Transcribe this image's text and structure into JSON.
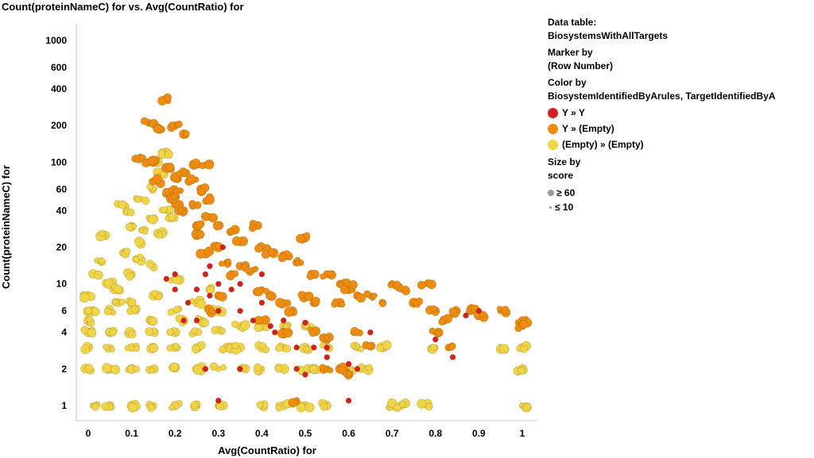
{
  "chart_data": {
    "type": "scatter",
    "title": "Count(proteinNameC) for vs. Avg(CountRatio) for",
    "xlabel": "Avg(CountRatio) for",
    "ylabel": "Count(proteinNameC) for",
    "x_scale": "linear",
    "y_scale": "log",
    "xlim": [
      -0.04,
      1.02
    ],
    "ylim": [
      0.75,
      1400
    ],
    "x_ticks": [
      0,
      0.1,
      0.2,
      0.3,
      0.4,
      0.5,
      0.6,
      0.7,
      0.8,
      0.9,
      1
    ],
    "x_tick_labels": [
      "0",
      "0.1",
      "0.2",
      "0.3",
      "0.4",
      "0.5",
      "0.6",
      "0.7",
      "0.8",
      "0.9",
      "1"
    ],
    "y_ticks": [
      1,
      2,
      4,
      6,
      10,
      20,
      40,
      60,
      100,
      200,
      400,
      600,
      1000
    ],
    "y_tick_labels": [
      "1",
      "2",
      "4",
      "6",
      "10",
      "20",
      "40",
      "60",
      "100",
      "200",
      "400",
      "600",
      "1000"
    ],
    "grid": false,
    "series": [
      {
        "name": "Y » Y",
        "color": "#d42020",
        "points": [
          [
            0.18,
            11
          ],
          [
            0.2,
            9
          ],
          [
            0.22,
            5
          ],
          [
            0.25,
            9
          ],
          [
            0.27,
            12
          ],
          [
            0.28,
            8
          ],
          [
            0.3,
            10
          ],
          [
            0.31,
            20
          ],
          [
            0.35,
            6
          ],
          [
            0.38,
            5
          ],
          [
            0.4,
            7
          ],
          [
            0.42,
            4.5
          ],
          [
            0.45,
            5
          ],
          [
            0.48,
            3
          ],
          [
            0.5,
            4.8
          ],
          [
            0.52,
            3
          ],
          [
            0.55,
            2.5
          ],
          [
            0.6,
            1.1
          ],
          [
            0.62,
            2
          ],
          [
            0.65,
            4
          ],
          [
            0.8,
            3.5
          ],
          [
            0.84,
            2.5
          ],
          [
            0.87,
            5.5
          ],
          [
            0.9,
            6
          ],
          [
            0.6,
            2.2
          ],
          [
            0.48,
            2
          ],
          [
            0.5,
            1.8
          ],
          [
            0.25,
            5
          ],
          [
            0.3,
            6
          ],
          [
            0.33,
            9
          ],
          [
            0.35,
            10
          ],
          [
            0.4,
            12
          ],
          [
            0.43,
            4
          ],
          [
            0.3,
            1.1
          ],
          [
            0.27,
            2
          ],
          [
            0.35,
            2
          ],
          [
            0.55,
            3
          ],
          [
            0.23,
            7
          ],
          [
            0.2,
            12
          ],
          [
            0.28,
            14
          ]
        ]
      },
      {
        "name": "Y » (Empty)",
        "color": "#ed8c10",
        "points": [
          [
            0.18,
            330
          ],
          [
            0.14,
            210
          ],
          [
            0.16,
            190
          ],
          [
            0.2,
            200
          ],
          [
            0.22,
            170
          ],
          [
            0.25,
            95
          ],
          [
            0.27,
            95
          ],
          [
            0.12,
            110
          ],
          [
            0.15,
            100
          ],
          [
            0.18,
            90
          ],
          [
            0.2,
            75
          ],
          [
            0.22,
            80
          ],
          [
            0.24,
            70
          ],
          [
            0.26,
            60
          ],
          [
            0.28,
            50
          ],
          [
            0.24,
            45
          ],
          [
            0.28,
            35
          ],
          [
            0.3,
            30
          ],
          [
            0.33,
            27
          ],
          [
            0.38,
            30
          ],
          [
            0.35,
            22
          ],
          [
            0.4,
            20
          ],
          [
            0.42,
            18
          ],
          [
            0.45,
            17
          ],
          [
            0.5,
            24
          ],
          [
            0.48,
            15
          ],
          [
            0.52,
            12
          ],
          [
            0.55,
            12
          ],
          [
            0.58,
            10
          ],
          [
            0.6,
            9
          ],
          [
            0.62,
            8
          ],
          [
            0.65,
            8
          ],
          [
            0.68,
            7
          ],
          [
            0.72,
            9
          ],
          [
            0.75,
            7
          ],
          [
            0.78,
            10
          ],
          [
            0.8,
            6
          ],
          [
            0.82,
            5
          ],
          [
            0.85,
            6
          ],
          [
            0.88,
            6
          ],
          [
            0.9,
            5.5
          ],
          [
            0.95,
            6
          ],
          [
            1.0,
            5
          ],
          [
            0.52,
            4
          ],
          [
            0.55,
            3.5
          ],
          [
            0.62,
            4
          ],
          [
            0.65,
            3
          ],
          [
            0.8,
            4
          ],
          [
            0.83,
            3
          ],
          [
            0.55,
            2
          ],
          [
            0.58,
            2
          ],
          [
            0.6,
            1.8
          ],
          [
            0.48,
            1.1
          ],
          [
            0.3,
            20
          ],
          [
            0.32,
            15
          ],
          [
            0.25,
            25
          ],
          [
            0.27,
            18
          ],
          [
            0.35,
            14
          ],
          [
            0.38,
            13
          ],
          [
            0.33,
            12
          ],
          [
            0.42,
            8
          ],
          [
            0.45,
            7
          ],
          [
            0.47,
            6
          ],
          [
            0.5,
            8
          ],
          [
            0.52,
            7
          ],
          [
            0.3,
            8
          ],
          [
            0.28,
            6
          ],
          [
            0.4,
            5
          ],
          [
            0.45,
            4
          ],
          [
            0.4,
            9
          ],
          [
            0.2,
            45
          ],
          [
            0.22,
            40
          ],
          [
            0.18,
            55
          ],
          [
            0.14,
            100
          ],
          [
            0.16,
            70
          ],
          [
            0.2,
            60
          ],
          [
            0.19,
            50
          ],
          [
            0.25,
            30
          ],
          [
            1.0,
            4.5
          ],
          [
            0.6,
            10
          ],
          [
            0.7,
            10
          ],
          [
            0.58,
            7
          ]
        ]
      },
      {
        "name": "(Empty) » (Empty)",
        "color": "#f0d448",
        "points": [
          [
            0.01,
            1
          ],
          [
            0.05,
            1
          ],
          [
            0.1,
            1
          ],
          [
            0.15,
            1
          ],
          [
            0.2,
            1
          ],
          [
            0.25,
            1
          ],
          [
            0.3,
            1
          ],
          [
            0.4,
            1
          ],
          [
            0.45,
            1
          ],
          [
            0.5,
            1
          ],
          [
            0.55,
            1
          ],
          [
            0.7,
            1
          ],
          [
            0.72,
            1
          ],
          [
            0.78,
            1
          ],
          [
            1.0,
            1
          ],
          [
            0.0,
            2
          ],
          [
            0.05,
            2
          ],
          [
            0.1,
            2
          ],
          [
            0.15,
            2
          ],
          [
            0.2,
            2
          ],
          [
            0.25,
            2
          ],
          [
            0.3,
            2
          ],
          [
            0.35,
            2
          ],
          [
            0.4,
            2
          ],
          [
            0.45,
            2
          ],
          [
            0.5,
            2
          ],
          [
            0.52,
            2
          ],
          [
            0.6,
            2
          ],
          [
            0.64,
            2
          ],
          [
            1.0,
            2
          ],
          [
            0.0,
            3
          ],
          [
            0.05,
            3
          ],
          [
            0.1,
            3
          ],
          [
            0.15,
            3
          ],
          [
            0.2,
            3
          ],
          [
            0.25,
            3
          ],
          [
            0.32,
            3
          ],
          [
            0.35,
            3
          ],
          [
            0.4,
            3
          ],
          [
            0.45,
            3
          ],
          [
            0.5,
            3
          ],
          [
            0.55,
            3
          ],
          [
            0.62,
            3
          ],
          [
            0.68,
            3
          ],
          [
            0.8,
            3
          ],
          [
            0.95,
            3
          ],
          [
            1.0,
            3
          ],
          [
            0.0,
            4
          ],
          [
            0.05,
            4
          ],
          [
            0.1,
            4
          ],
          [
            0.15,
            4
          ],
          [
            0.2,
            4
          ],
          [
            0.25,
            4
          ],
          [
            0.3,
            4.2
          ],
          [
            0.35,
            4.5
          ],
          [
            0.4,
            4.5
          ],
          [
            0.45,
            4.5
          ],
          [
            0.5,
            4.5
          ],
          [
            0.0,
            5
          ],
          [
            0.05,
            6
          ],
          [
            0.1,
            7
          ],
          [
            0.15,
            8
          ],
          [
            0.2,
            6
          ],
          [
            0.25,
            7
          ],
          [
            0.3,
            6
          ],
          [
            0.0,
            8
          ],
          [
            0.05,
            10
          ],
          [
            0.1,
            12
          ],
          [
            0.15,
            14
          ],
          [
            0.2,
            11
          ],
          [
            0.03,
            15
          ],
          [
            0.08,
            18
          ],
          [
            0.12,
            22
          ],
          [
            0.16,
            26
          ],
          [
            0.1,
            30
          ],
          [
            0.14,
            35
          ],
          [
            0.18,
            40
          ],
          [
            0.08,
            45
          ],
          [
            0.12,
            50
          ],
          [
            0.15,
            60
          ],
          [
            0.17,
            80
          ],
          [
            0.16,
            100
          ],
          [
            0.18,
            120
          ],
          [
            0.02,
            12
          ],
          [
            0.06,
            9
          ],
          [
            0.11,
            6
          ],
          [
            0.14,
            5
          ],
          [
            0.22,
            5
          ],
          [
            0.26,
            5
          ],
          [
            0.28,
            9
          ],
          [
            0.04,
            25
          ],
          [
            0.09,
            40
          ],
          [
            0.13,
            28
          ],
          [
            0.19,
            35
          ],
          [
            0.11,
            16
          ],
          [
            0.07,
            7
          ],
          [
            0.01,
            6
          ]
        ]
      }
    ],
    "legend": {
      "data_table_label": "Data table:",
      "data_table_name": "BiosystemsWithAllTargets",
      "marker_by_label": "Marker by",
      "marker_by_value": "(Row Number)",
      "color_by_label": "Color by",
      "color_by_value": "BiosystemIdentifiedByArules, TargetIdentifiedByA",
      "size_by_label": "Size by",
      "size_by_value": "score",
      "size_large_label": "≥ 60",
      "size_small_label": "≤ 10",
      "size_color": "#9a9a9a"
    }
  }
}
